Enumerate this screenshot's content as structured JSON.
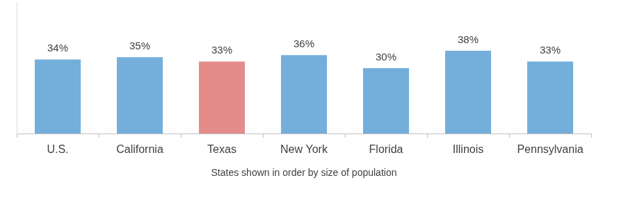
{
  "chart_data": {
    "type": "bar",
    "categories": [
      "U.S.",
      "California",
      "Texas",
      "New York",
      "Florida",
      "Illinois",
      "Pennsylvania"
    ],
    "values": [
      34,
      35,
      33,
      36,
      30,
      38,
      33
    ],
    "value_labels": [
      "34%",
      "35%",
      "33%",
      "36%",
      "30%",
      "38%",
      "33%"
    ],
    "colors": [
      "#74afdc",
      "#74afdc",
      "#e48c8a",
      "#74afdc",
      "#74afdc",
      "#74afdc",
      "#74afdc"
    ],
    "xlabel": "States shown in order by size of population",
    "ylim": [
      0,
      60
    ],
    "grid": false,
    "data_labels": true,
    "tick_labels": "x"
  }
}
